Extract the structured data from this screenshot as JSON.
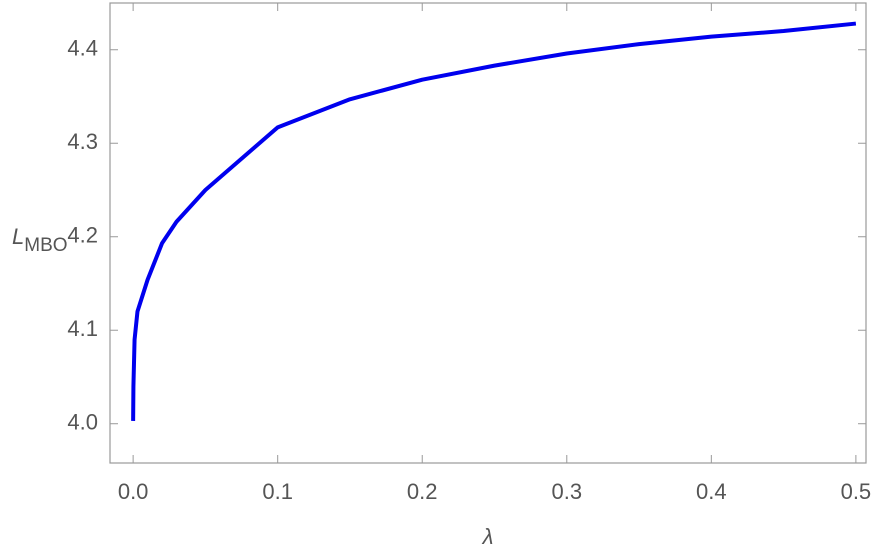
{
  "chart_data": {
    "type": "line",
    "x_label": "λ",
    "y_label": "L",
    "y_label_subscript": "MBO",
    "x": [
      0,
      0.0002,
      0.001,
      0.003,
      0.01,
      0.02,
      0.03,
      0.05,
      0.1,
      0.15,
      0.2,
      0.25,
      0.3,
      0.35,
      0.4,
      0.45,
      0.5
    ],
    "series": [
      {
        "color": "#0000ee",
        "values": [
          4.003,
          4.04,
          4.09,
          4.12,
          4.154,
          4.193,
          4.216,
          4.25,
          4.317,
          4.347,
          4.368,
          4.383,
          4.396,
          4.406,
          4.414,
          4.42,
          4.428
        ]
      }
    ],
    "xlim": [
      -0.016,
      0.507
    ],
    "ylim": [
      3.958,
      4.45
    ],
    "xticks": [
      {
        "value": 0,
        "label": "0.0"
      },
      0.1,
      0.2,
      0.3,
      0.4,
      0.5
    ],
    "yticks": [
      {
        "value": 4,
        "label": "4.0"
      },
      4.1,
      4.2,
      4.3,
      4.4
    ],
    "grid": false
  }
}
